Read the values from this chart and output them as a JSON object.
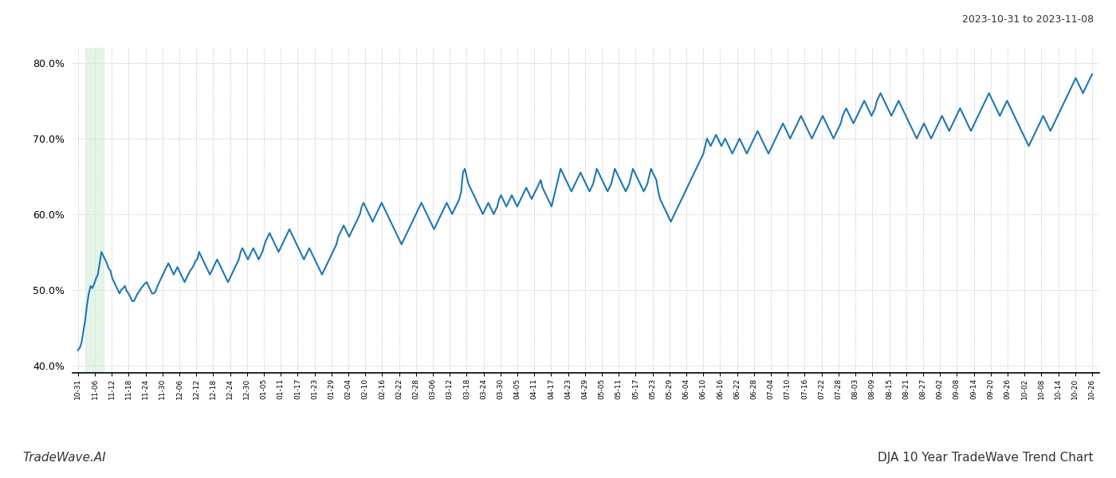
{
  "title_top_right": "2023-10-31 to 2023-11-08",
  "title_bottom": "DJA 10 Year TradeWave Trend Chart",
  "watermark": "TradeWave.AI",
  "line_color": "#1f77b4",
  "line_width": 1.5,
  "highlight_color": "#d4edda",
  "highlight_alpha": 0.6,
  "background_color": "#ffffff",
  "grid_color": "#cccccc",
  "ylim": [
    39.0,
    82.0
  ],
  "yticks": [
    40.0,
    50.0,
    60.0,
    70.0,
    80.0
  ],
  "x_labels": [
    "10-31",
    "11-06",
    "11-12",
    "11-18",
    "11-24",
    "11-30",
    "12-06",
    "12-12",
    "12-18",
    "12-24",
    "12-30",
    "01-05",
    "01-11",
    "01-17",
    "01-23",
    "01-29",
    "02-04",
    "02-10",
    "02-16",
    "02-22",
    "02-28",
    "03-06",
    "03-12",
    "03-18",
    "03-24",
    "03-30",
    "04-05",
    "04-11",
    "04-17",
    "04-23",
    "04-29",
    "05-05",
    "05-11",
    "05-17",
    "05-23",
    "05-29",
    "06-04",
    "06-10",
    "06-16",
    "06-22",
    "06-28",
    "07-04",
    "07-10",
    "07-16",
    "07-22",
    "07-28",
    "08-03",
    "08-09",
    "08-15",
    "08-21",
    "08-27",
    "09-02",
    "09-08",
    "09-14",
    "09-20",
    "09-26",
    "10-02",
    "10-08",
    "10-14",
    "10-20",
    "10-26"
  ],
  "y_values": [
    42.0,
    42.3,
    43.0,
    44.5,
    46.0,
    48.0,
    49.5,
    50.5,
    50.2,
    50.8,
    51.5,
    52.0,
    53.5,
    55.0,
    54.5,
    54.0,
    53.5,
    52.8,
    52.5,
    51.5,
    51.0,
    50.5,
    50.0,
    49.5,
    50.0,
    50.2,
    50.5,
    49.8,
    49.5,
    49.0,
    48.5,
    48.5,
    49.0,
    49.5,
    49.8,
    50.2,
    50.5,
    50.8,
    51.0,
    50.5,
    50.0,
    49.5,
    49.5,
    49.8,
    50.5,
    51.0,
    51.5,
    52.0,
    52.5,
    53.0,
    53.5,
    53.0,
    52.5,
    52.0,
    52.5,
    53.0,
    52.5,
    52.0,
    51.5,
    51.0,
    51.5,
    52.0,
    52.5,
    52.8,
    53.2,
    53.8,
    54.0,
    55.0,
    54.5,
    54.0,
    53.5,
    53.0,
    52.5,
    52.0,
    52.5,
    53.0,
    53.5,
    54.0,
    53.5,
    53.0,
    52.5,
    52.0,
    51.5,
    51.0,
    51.5,
    52.0,
    52.5,
    53.0,
    53.5,
    54.0,
    55.0,
    55.5,
    55.0,
    54.5,
    54.0,
    54.5,
    55.0,
    55.5,
    55.0,
    54.5,
    54.0,
    54.5,
    55.0,
    55.8,
    56.5,
    57.0,
    57.5,
    57.0,
    56.5,
    56.0,
    55.5,
    55.0,
    55.5,
    56.0,
    56.5,
    57.0,
    57.5,
    58.0,
    57.5,
    57.0,
    56.5,
    56.0,
    55.5,
    55.0,
    54.5,
    54.0,
    54.5,
    55.0,
    55.5,
    55.0,
    54.5,
    54.0,
    53.5,
    53.0,
    52.5,
    52.0,
    52.5,
    53.0,
    53.5,
    54.0,
    54.5,
    55.0,
    55.5,
    56.0,
    57.0,
    57.5,
    58.0,
    58.5,
    58.0,
    57.5,
    57.0,
    57.5,
    58.0,
    58.5,
    59.0,
    59.5,
    60.0,
    61.0,
    61.5,
    61.0,
    60.5,
    60.0,
    59.5,
    59.0,
    59.5,
    60.0,
    60.5,
    61.0,
    61.5,
    61.0,
    60.5,
    60.0,
    59.5,
    59.0,
    58.5,
    58.0,
    57.5,
    57.0,
    56.5,
    56.0,
    56.5,
    57.0,
    57.5,
    58.0,
    58.5,
    59.0,
    59.5,
    60.0,
    60.5,
    61.0,
    61.5,
    61.0,
    60.5,
    60.0,
    59.5,
    59.0,
    58.5,
    58.0,
    58.5,
    59.0,
    59.5,
    60.0,
    60.5,
    61.0,
    61.5,
    61.0,
    60.5,
    60.0,
    60.5,
    61.0,
    61.5,
    62.0,
    63.0,
    65.5,
    66.0,
    65.0,
    64.0,
    63.5,
    63.0,
    62.5,
    62.0,
    61.5,
    61.0,
    60.5,
    60.0,
    60.5,
    61.0,
    61.5,
    61.0,
    60.5,
    60.0,
    60.5,
    61.0,
    62.0,
    62.5,
    62.0,
    61.5,
    61.0,
    61.5,
    62.0,
    62.5,
    62.0,
    61.5,
    61.0,
    61.5,
    62.0,
    62.5,
    63.0,
    63.5,
    63.0,
    62.5,
    62.0,
    62.5,
    63.0,
    63.5,
    64.0,
    64.5,
    63.5,
    63.0,
    62.5,
    62.0,
    61.5,
    61.0,
    62.0,
    63.0,
    64.0,
    65.0,
    66.0,
    65.5,
    65.0,
    64.5,
    64.0,
    63.5,
    63.0,
    63.5,
    64.0,
    64.5,
    65.0,
    65.5,
    65.0,
    64.5,
    64.0,
    63.5,
    63.0,
    63.5,
    64.0,
    65.0,
    66.0,
    65.5,
    65.0,
    64.5,
    64.0,
    63.5,
    63.0,
    63.5,
    64.0,
    65.0,
    66.0,
    65.5,
    65.0,
    64.5,
    64.0,
    63.5,
    63.0,
    63.5,
    64.0,
    65.0,
    66.0,
    65.5,
    65.0,
    64.5,
    64.0,
    63.5,
    63.0,
    63.5,
    64.0,
    65.0,
    66.0,
    65.5,
    65.0,
    64.5,
    63.0,
    62.0,
    61.5,
    61.0,
    60.5,
    60.0,
    59.5,
    59.0,
    59.5,
    60.0,
    60.5,
    61.0,
    61.5,
    62.0,
    62.5,
    63.0,
    63.5,
    64.0,
    64.5,
    65.0,
    65.5,
    66.0,
    66.5,
    67.0,
    67.5,
    68.0,
    69.0,
    70.0,
    69.5,
    69.0,
    69.5,
    70.0,
    70.5,
    70.0,
    69.5,
    69.0,
    69.5,
    70.0,
    69.5,
    69.0,
    68.5,
    68.0,
    68.5,
    69.0,
    69.5,
    70.0,
    69.5,
    69.0,
    68.5,
    68.0,
    68.5,
    69.0,
    69.5,
    70.0,
    70.5,
    71.0,
    70.5,
    70.0,
    69.5,
    69.0,
    68.5,
    68.0,
    68.5,
    69.0,
    69.5,
    70.0,
    70.5,
    71.0,
    71.5,
    72.0,
    71.5,
    71.0,
    70.5,
    70.0,
    70.5,
    71.0,
    71.5,
    72.0,
    72.5,
    73.0,
    72.5,
    72.0,
    71.5,
    71.0,
    70.5,
    70.0,
    70.5,
    71.0,
    71.5,
    72.0,
    72.5,
    73.0,
    72.5,
    72.0,
    71.5,
    71.0,
    70.5,
    70.0,
    70.5,
    71.0,
    71.5,
    72.0,
    73.0,
    73.5,
    74.0,
    73.5,
    73.0,
    72.5,
    72.0,
    72.5,
    73.0,
    73.5,
    74.0,
    74.5,
    75.0,
    74.5,
    74.0,
    73.5,
    73.0,
    73.5,
    74.0,
    75.0,
    75.5,
    76.0,
    75.5,
    75.0,
    74.5,
    74.0,
    73.5,
    73.0,
    73.5,
    74.0,
    74.5,
    75.0,
    74.5,
    74.0,
    73.5,
    73.0,
    72.5,
    72.0,
    71.5,
    71.0,
    70.5,
    70.0,
    70.5,
    71.0,
    71.5,
    72.0,
    71.5,
    71.0,
    70.5,
    70.0,
    70.5,
    71.0,
    71.5,
    72.0,
    72.5,
    73.0,
    72.5,
    72.0,
    71.5,
    71.0,
    71.5,
    72.0,
    72.5,
    73.0,
    73.5,
    74.0,
    73.5,
    73.0,
    72.5,
    72.0,
    71.5,
    71.0,
    71.5,
    72.0,
    72.5,
    73.0,
    73.5,
    74.0,
    74.5,
    75.0,
    75.5,
    76.0,
    75.5,
    75.0,
    74.5,
    74.0,
    73.5,
    73.0,
    73.5,
    74.0,
    74.5,
    75.0,
    74.5,
    74.0,
    73.5,
    73.0,
    72.5,
    72.0,
    71.5,
    71.0,
    70.5,
    70.0,
    69.5,
    69.0,
    69.5,
    70.0,
    70.5,
    71.0,
    71.5,
    72.0,
    72.5,
    73.0,
    72.5,
    72.0,
    71.5,
    71.0,
    71.5,
    72.0,
    72.5,
    73.0,
    73.5,
    74.0,
    74.5,
    75.0,
    75.5,
    76.0,
    76.5,
    77.0,
    77.5,
    78.0,
    77.5,
    77.0,
    76.5,
    76.0,
    76.5,
    77.0,
    77.5,
    78.0,
    78.5
  ]
}
